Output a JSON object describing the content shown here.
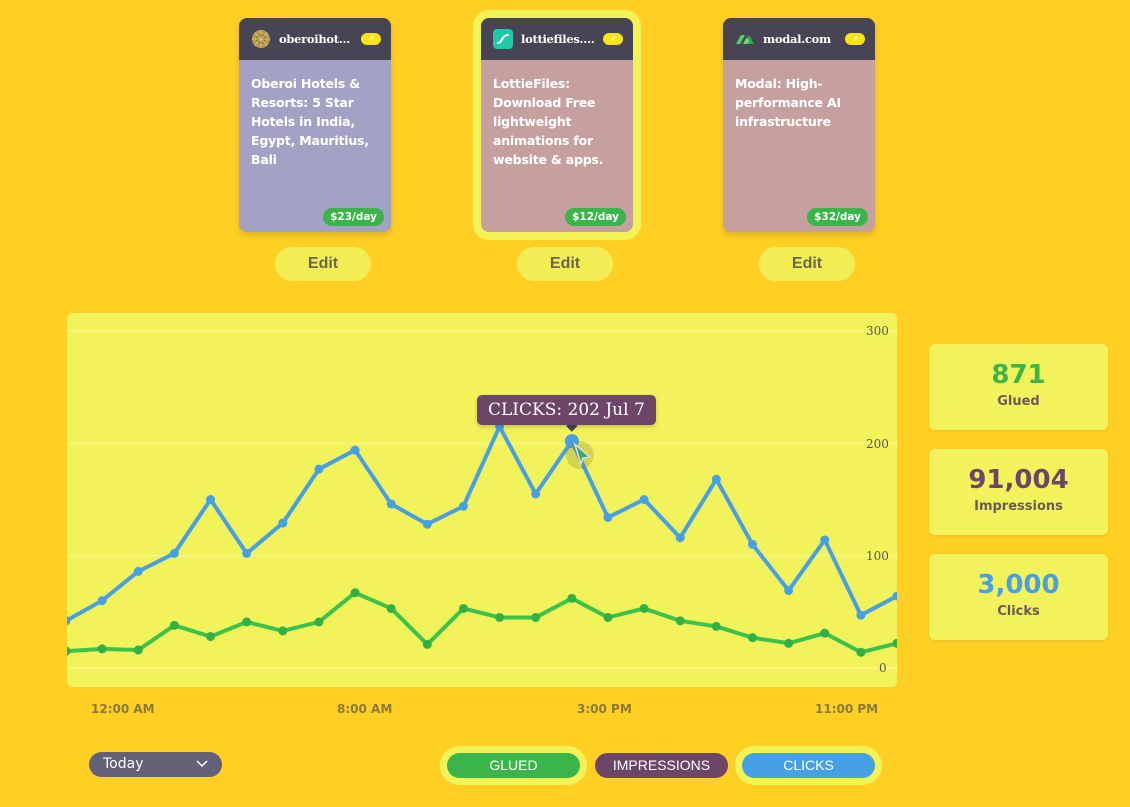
{
  "cards": [
    {
      "site": "oberoihotels....",
      "title": "Oberoi Hotels & Resorts: 5 Star Hotels in India, Egypt, Mauritius, Bali",
      "price": "$23/day",
      "edit_label": "Edit",
      "open_icon": "↗",
      "body_color": "#a3a1c4",
      "selected": false
    },
    {
      "site": "lottiefiles.com",
      "title": "LottieFiles: Download Free lightweight animations for website & apps.",
      "price": "$12/day",
      "edit_label": "Edit",
      "open_icon": "↗",
      "body_color": "#c5a09f",
      "selected": true
    },
    {
      "site": "modal.com",
      "title": "Modal: High-performance AI infrastructure",
      "price": "$32/day",
      "edit_label": "Edit",
      "open_icon": "↗",
      "body_color": "#c5a09f",
      "selected": false
    }
  ],
  "stats": [
    {
      "value": "871",
      "label": "Glued",
      "color": "#3bb54a"
    },
    {
      "value": "91,004",
      "label": "Impressions",
      "color": "#6c4568"
    },
    {
      "value": "3,000",
      "label": "Clicks",
      "color": "#47a0e6"
    }
  ],
  "controls": {
    "range_selected": "Today",
    "legend": [
      {
        "label": "GLUED",
        "color": "#3bb54a",
        "active": true
      },
      {
        "label": "IMPRESSIONS",
        "color": "#6c4568",
        "active": false
      },
      {
        "label": "CLICKS",
        "color": "#47a0e6",
        "active": true
      }
    ]
  },
  "tooltip": {
    "text": "CLICKS: 202 Jul 7"
  },
  "chart_data": {
    "type": "line",
    "title": "",
    "xlabel": "",
    "ylabel": "",
    "ylim": [
      0,
      300
    ],
    "y_ticks": [
      "300",
      "200",
      "100",
      "0"
    ],
    "x_tick_labels": [
      "12:00 AM",
      "8:00 AM",
      "3:00 PM",
      "11:00 PM"
    ],
    "grid": true,
    "legend_position": "bottom",
    "x": [
      0,
      1,
      2,
      3,
      4,
      5,
      6,
      7,
      8,
      9,
      10,
      11,
      12,
      13,
      14,
      15,
      16,
      17,
      18,
      19,
      20,
      21,
      22,
      23
    ],
    "series": [
      {
        "name": "Clicks",
        "color": "#47a0e6",
        "values": [
          42,
          60,
          86,
          102,
          150,
          102,
          129,
          177,
          194,
          146,
          128,
          144,
          215,
          155,
          202,
          134,
          150,
          116,
          168,
          110,
          69,
          114,
          47,
          64
        ]
      },
      {
        "name": "Glued",
        "color": "#3bc24a",
        "values": [
          15,
          17,
          16,
          38,
          28,
          41,
          33,
          41,
          67,
          53,
          21,
          53,
          45,
          45,
          62,
          45,
          53,
          42,
          37,
          27,
          22,
          31,
          14,
          22
        ]
      }
    ],
    "highlight": {
      "series": "Clicks",
      "index": 14,
      "value": 202,
      "label": "Jul 7"
    }
  }
}
